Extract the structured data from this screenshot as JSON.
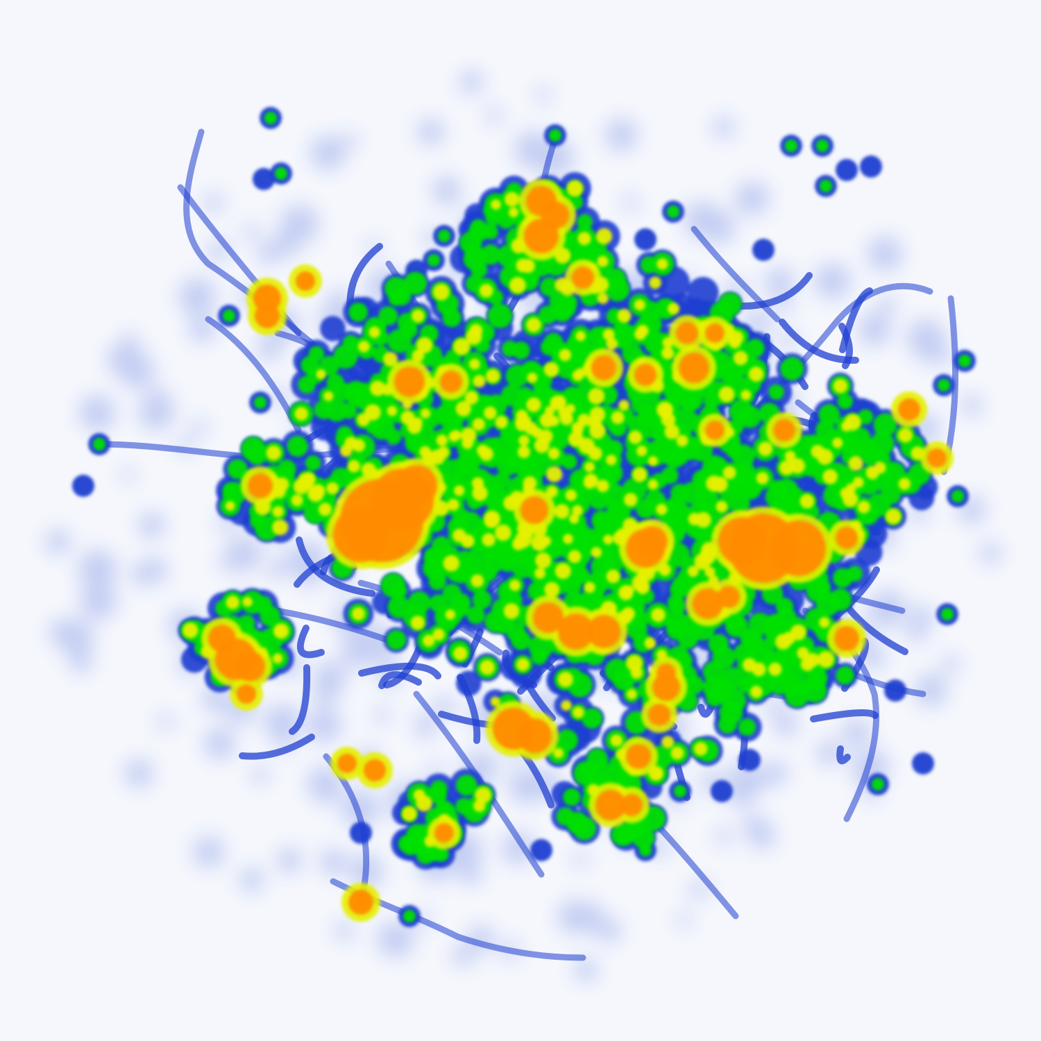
{
  "map": {
    "kind": "density-heatmap",
    "background": "#f5f7fd",
    "color_ramp": [
      "#1f3fd0",
      "#00e000",
      "#e6f000",
      "#ff8c00"
    ],
    "color_ramp_names": [
      "low",
      "medium",
      "high",
      "peak"
    ],
    "legend": null,
    "labels": null
  }
}
